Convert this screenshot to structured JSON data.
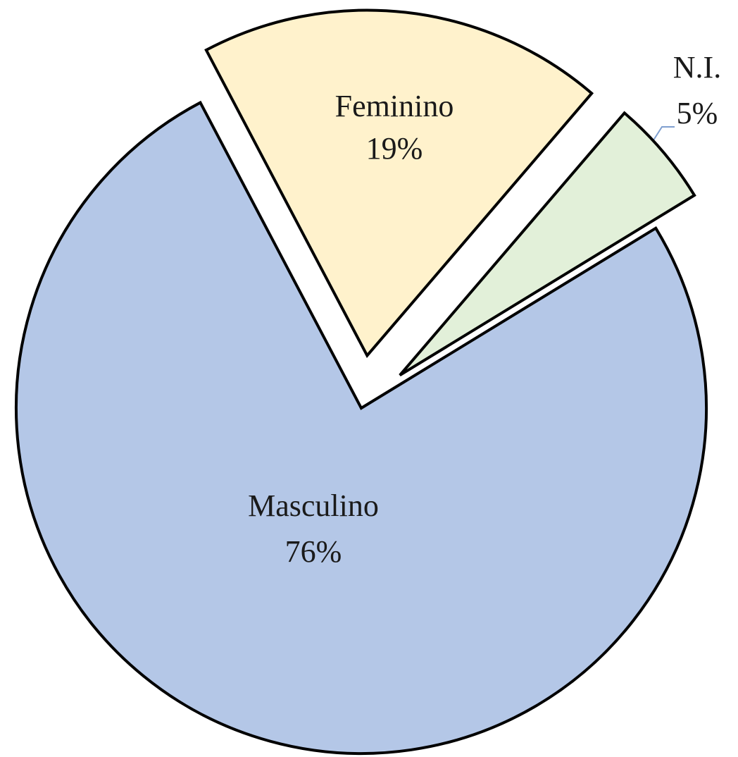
{
  "chart_data": {
    "type": "pie",
    "categories": [
      "Masculino",
      "Feminino",
      "N.I."
    ],
    "values": [
      76,
      19,
      5
    ],
    "value_labels": [
      "76%",
      "19%",
      "5%"
    ],
    "colors": [
      "#b4c7e7",
      "#fff2cc",
      "#e2f0d9"
    ]
  }
}
